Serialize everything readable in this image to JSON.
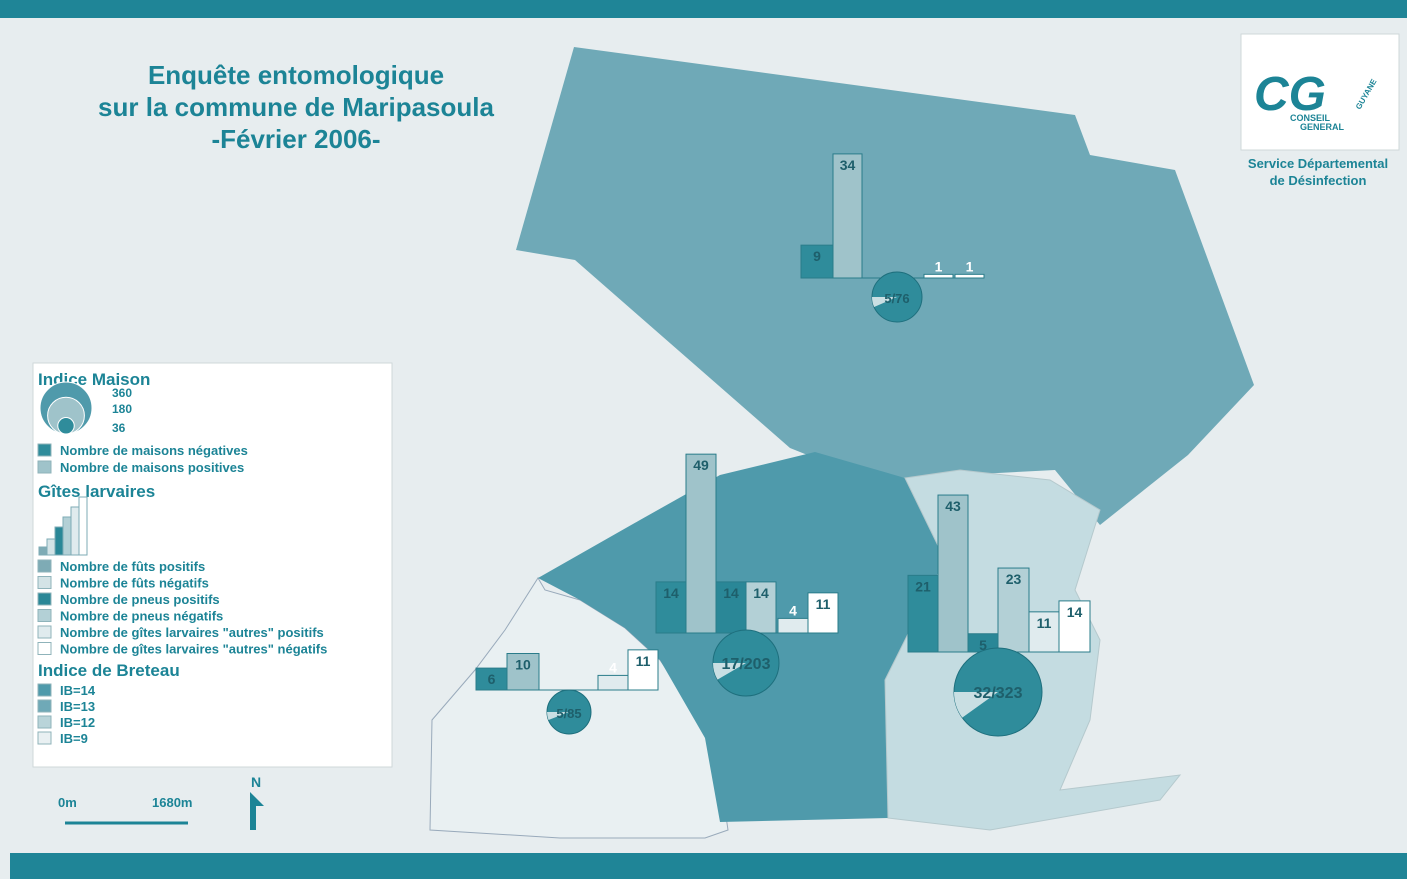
{
  "title": [
    "Enquête entomologique",
    "sur la commune de Maripasoula",
    "-Février 2006-"
  ],
  "logo": {
    "mark": "CG",
    "name": [
      "CONSEIL",
      "GENERAL"
    ],
    "region": "GUYANE"
  },
  "service": [
    "Service Départemental",
    "de Désinfection"
  ],
  "legend": {
    "indice_maison": {
      "title": "Indice Maison",
      "sizes": [
        360,
        180,
        36
      ],
      "items": [
        {
          "label": "Nombre de maisons négatives",
          "color": "#2f8c9b"
        },
        {
          "label": "Nombre de maisons positives",
          "color": "#9fc3ca"
        }
      ]
    },
    "gites": {
      "title": "Gîtes larvaires",
      "items": [
        {
          "label": "Nombre de fûts positifs",
          "color": "#7eabb5"
        },
        {
          "label": "Nombre de fûts négatifs",
          "color": "#d3e3e6"
        },
        {
          "label": "Nombre de pneus positifs",
          "color": "#2a8797"
        },
        {
          "label": "Nombre de pneus négatifs",
          "color": "#b3d0d6"
        },
        {
          "label": "Nombre de gîtes larvaires \"autres\" positifs",
          "color": "#e0ebee"
        },
        {
          "label": "Nombre de gîtes larvaires \"autres\" négatifs",
          "color": "#ffffff"
        }
      ]
    },
    "breteau": {
      "title": "Indice de Breteau",
      "items": [
        {
          "label": "IB=14",
          "color": "#4f9aab"
        },
        {
          "label": "IB=13",
          "color": "#6fa9b7"
        },
        {
          "label": "IB=12",
          "color": "#b9d4d9"
        },
        {
          "label": "IB=9",
          "color": "#e9f0f2"
        }
      ]
    }
  },
  "zones": [
    {
      "fill": "#6fa9b7",
      "bars": [
        {
          "value": 9,
          "color": "#2f8c9b"
        },
        {
          "value": 34,
          "color": "#9fc3ca"
        },
        {
          "value": 1,
          "color": "#ffffff"
        },
        {
          "value": 1,
          "color": "#ffffff"
        }
      ],
      "pie": {
        "label": "5/76",
        "positive": 5,
        "total": 76
      }
    },
    {
      "fill": "#e9f0f2",
      "bars": [
        {
          "value": 6,
          "color": "#2f8c9b"
        },
        {
          "value": 10,
          "color": "#9fc3ca"
        },
        {
          "value": 4,
          "color": "#e0ebee"
        },
        {
          "value": 11,
          "color": "#ffffff"
        }
      ],
      "pie": {
        "label": "5/85",
        "positive": 5,
        "total": 85
      }
    },
    {
      "fill": "#4f9aab",
      "bars": [
        {
          "value": 14,
          "color": "#2f8c9b"
        },
        {
          "value": 49,
          "color": "#9fc3ca"
        },
        {
          "value": 14,
          "color": "#2a8797"
        },
        {
          "value": 14,
          "color": "#b3d0d6"
        },
        {
          "value": 4,
          "color": "#e0ebee"
        },
        {
          "value": 11,
          "color": "#ffffff"
        }
      ],
      "pie": {
        "label": "17/203",
        "positive": 17,
        "total": 203
      }
    },
    {
      "fill": "#c4dce1",
      "bars": [
        {
          "value": 21,
          "color": "#2f8c9b"
        },
        {
          "value": 43,
          "color": "#9fc3ca"
        },
        {
          "value": 5,
          "color": "#2a8797"
        },
        {
          "value": 23,
          "color": "#b3d0d6"
        },
        {
          "value": 11,
          "color": "#e0ebee"
        },
        {
          "value": 14,
          "color": "#ffffff"
        }
      ],
      "pie": {
        "label": "32/323",
        "positive": 32,
        "total": 323
      }
    }
  ],
  "scale": {
    "start": "0m",
    "end": "1680m"
  },
  "north": "N"
}
